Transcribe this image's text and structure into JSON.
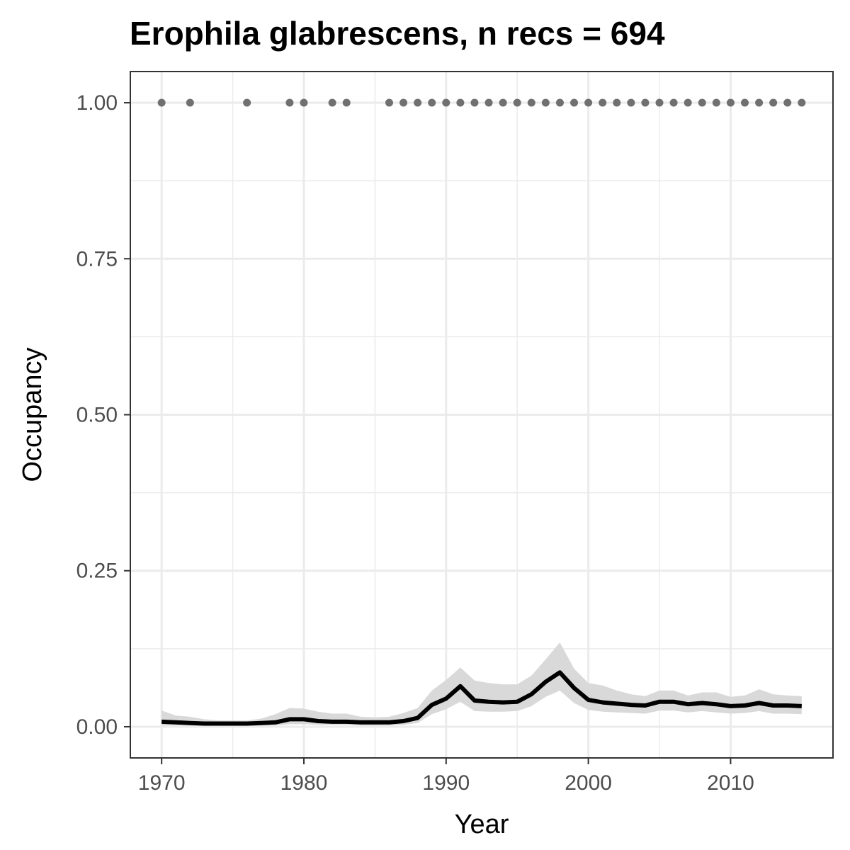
{
  "chart_data": {
    "type": "line",
    "title": "Erophila glabrescens, n recs = 694",
    "xlabel": "Year",
    "ylabel": "Occupancy",
    "xlim": [
      1967.8,
      2017.2
    ],
    "ylim": [
      -0.05,
      1.05
    ],
    "x_ticks": [
      1970,
      1980,
      1990,
      2000,
      2010
    ],
    "x_tick_labels": [
      "1970",
      "1980",
      "1990",
      "2000",
      "2010"
    ],
    "y_ticks": [
      0,
      0.25,
      0.5,
      0.75,
      1.0
    ],
    "y_tick_labels": [
      "0.00",
      "0.25",
      "0.50",
      "0.75",
      "1.00"
    ],
    "grid": true,
    "legend": "none",
    "series": [
      {
        "role": "estimate",
        "color": "#000000",
        "x": [
          1970,
          1971,
          1972,
          1973,
          1974,
          1975,
          1976,
          1977,
          1978,
          1979,
          1980,
          1981,
          1982,
          1983,
          1984,
          1985,
          1986,
          1987,
          1988,
          1989,
          1990,
          1991,
          1992,
          1993,
          1994,
          1995,
          1996,
          1997,
          1998,
          1999,
          2000,
          2001,
          2002,
          2003,
          2004,
          2005,
          2006,
          2007,
          2008,
          2009,
          2010,
          2011,
          2012,
          2013,
          2014,
          2015
        ],
        "values": [
          0.008,
          0.007,
          0.006,
          0.005,
          0.005,
          0.005,
          0.005,
          0.006,
          0.007,
          0.012,
          0.012,
          0.009,
          0.008,
          0.008,
          0.007,
          0.007,
          0.007,
          0.009,
          0.014,
          0.035,
          0.045,
          0.065,
          0.042,
          0.04,
          0.039,
          0.04,
          0.052,
          0.072,
          0.087,
          0.062,
          0.043,
          0.039,
          0.037,
          0.035,
          0.034,
          0.04,
          0.04,
          0.036,
          0.038,
          0.036,
          0.033,
          0.034,
          0.038,
          0.034,
          0.034,
          0.033
        ],
        "lower": [
          0.002,
          0.002,
          0.002,
          0.001,
          0.001,
          0.001,
          0.001,
          0.002,
          0.002,
          0.004,
          0.004,
          0.003,
          0.003,
          0.003,
          0.002,
          0.002,
          0.002,
          0.003,
          0.006,
          0.02,
          0.028,
          0.04,
          0.025,
          0.024,
          0.024,
          0.025,
          0.033,
          0.048,
          0.058,
          0.038,
          0.027,
          0.024,
          0.023,
          0.022,
          0.021,
          0.026,
          0.026,
          0.023,
          0.025,
          0.023,
          0.021,
          0.022,
          0.025,
          0.021,
          0.021,
          0.02
        ],
        "upper": [
          0.026,
          0.018,
          0.016,
          0.012,
          0.01,
          0.01,
          0.01,
          0.013,
          0.02,
          0.03,
          0.029,
          0.024,
          0.021,
          0.021,
          0.016,
          0.015,
          0.016,
          0.022,
          0.03,
          0.058,
          0.075,
          0.095,
          0.074,
          0.07,
          0.068,
          0.068,
          0.082,
          0.108,
          0.135,
          0.093,
          0.07,
          0.066,
          0.058,
          0.052,
          0.049,
          0.058,
          0.058,
          0.05,
          0.055,
          0.055,
          0.048,
          0.05,
          0.06,
          0.052,
          0.05,
          0.049
        ],
        "ribbon_color": "#d9d9d9"
      },
      {
        "role": "records",
        "type": "scatter",
        "color": "#707070",
        "x": [
          1970,
          1972,
          1976,
          1979,
          1980,
          1982,
          1983,
          1986,
          1987,
          1988,
          1989,
          1990,
          1991,
          1992,
          1993,
          1994,
          1995,
          1996,
          1997,
          1998,
          1999,
          2000,
          2001,
          2002,
          2003,
          2004,
          2005,
          2006,
          2007,
          2008,
          2009,
          2010,
          2011,
          2012,
          2013,
          2014,
          2015
        ],
        "values": [
          1,
          1,
          1,
          1,
          1,
          1,
          1,
          1,
          1,
          1,
          1,
          1,
          1,
          1,
          1,
          1,
          1,
          1,
          1,
          1,
          1,
          1,
          1,
          1,
          1,
          1,
          1,
          1,
          1,
          1,
          1,
          1,
          1,
          1,
          1,
          1,
          1
        ]
      }
    ]
  }
}
